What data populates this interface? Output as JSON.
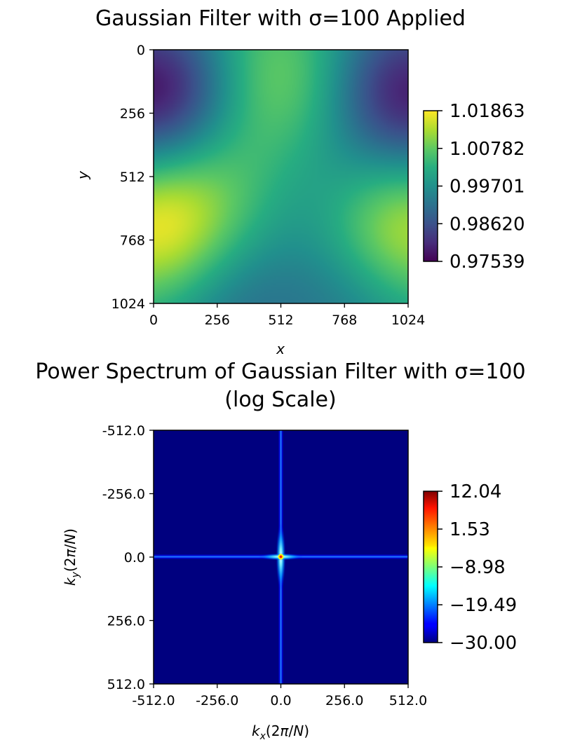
{
  "chart_data": [
    {
      "type": "heatmap",
      "title": "Gaussian Filter with σ=100 Applied",
      "xlabel": "x",
      "ylabel": "y",
      "xlim": [
        0,
        1024
      ],
      "ylim": [
        1024,
        0
      ],
      "x_ticks": [
        "0",
        "256",
        "512",
        "768",
        "1024"
      ],
      "y_ticks": [
        "0",
        "256",
        "512",
        "768",
        "1024"
      ],
      "colormap": "viridis",
      "colorbar": {
        "min": 0.97539,
        "max": 1.01863,
        "tick_values": [
          0.97539,
          0.9862,
          0.99701,
          1.00782,
          1.01863
        ],
        "ticks": [
          "0.97539",
          "0.98620",
          "0.99701",
          "1.00782",
          "1.01863"
        ]
      },
      "features": [
        {
          "x": 20,
          "y": 180,
          "value": 0.9754
        },
        {
          "x": 1000,
          "y": 190,
          "value": 0.9765
        },
        {
          "x": 30,
          "y": 720,
          "value": 1.0186
        },
        {
          "x": 1000,
          "y": 740,
          "value": 1.0175
        },
        {
          "x": 460,
          "y": 60,
          "value": 1.0078
        },
        {
          "x": 330,
          "y": 460,
          "value": 1.0055
        },
        {
          "x": 700,
          "y": 250,
          "value": 1.0045
        },
        {
          "x": 600,
          "y": 530,
          "value": 0.993
        },
        {
          "x": 330,
          "y": 990,
          "value": 0.9895
        },
        {
          "x": 820,
          "y": 950,
          "value": 0.99
        },
        {
          "x": 520,
          "y": 860,
          "value": 1.0015
        }
      ]
    },
    {
      "type": "heatmap",
      "title": "Power Spectrum of Gaussian Filter with σ=100\n(log Scale)",
      "title_lines": [
        "Power Spectrum of Gaussian Filter with σ=100",
        "(log Scale)"
      ],
      "xlabel": "k_x(2π/N)",
      "ylabel": "k_y(2π/N)",
      "xlim": [
        -512,
        512
      ],
      "ylim": [
        512,
        -512
      ],
      "x_ticks": [
        "-512.0",
        "-256.0",
        "0.0",
        "256.0",
        "512.0"
      ],
      "y_ticks": [
        "-512.0",
        "-256.0",
        "0.0",
        "256.0",
        "512.0"
      ],
      "colormap": "jet",
      "colorbar": {
        "min": -30.0,
        "max": 12.04,
        "tick_values": [
          -30.0,
          -19.49,
          -8.98,
          1.53,
          12.04
        ],
        "ticks": [
          "−30.00",
          "−19.49",
          "−8.98",
          "1.53",
          "12.04"
        ]
      },
      "background_value": -30.0,
      "peak": {
        "kx": 0,
        "ky": 0,
        "value": 12.04
      }
    }
  ]
}
